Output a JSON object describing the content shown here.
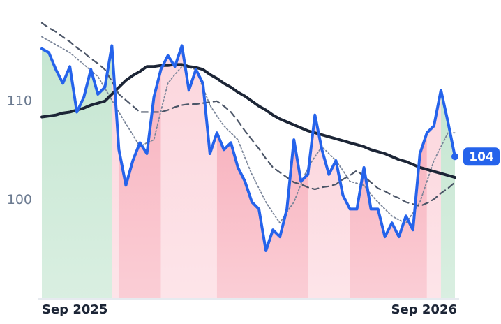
{
  "chart_data": {
    "type": "line",
    "categories": [
      "Sep 2025",
      null,
      null,
      null,
      null,
      null,
      null,
      null,
      null,
      null,
      null,
      null,
      null,
      null,
      null,
      null,
      null,
      null,
      null,
      null,
      null,
      null,
      null,
      null,
      null,
      null,
      null,
      null,
      null,
      null,
      null,
      null,
      null,
      null,
      null,
      null,
      null,
      null,
      null,
      null,
      null,
      null,
      null,
      null,
      null,
      null,
      null,
      null,
      null,
      null,
      null,
      null,
      null,
      null,
      null,
      null,
      null,
      null,
      null,
      "Sep 2026"
    ],
    "ylim": [
      90.1,
      118.1
    ],
    "yticks": [
      100,
      110
    ],
    "regions": [
      {
        "from": 0,
        "to": 10,
        "color": "#c5e6d1"
      },
      {
        "from": 10,
        "to": 11,
        "color": "#fcd6dd"
      },
      {
        "from": 11,
        "to": 17,
        "color": "#f8b3bf"
      },
      {
        "from": 17,
        "to": 25,
        "color": "#fcd6dd"
      },
      {
        "from": 25,
        "to": 38,
        "color": "#f8b3bf"
      },
      {
        "from": 38,
        "to": 44,
        "color": "#fcd6dd"
      },
      {
        "from": 44,
        "to": 55,
        "color": "#f8b3bf"
      },
      {
        "from": 55,
        "to": 57,
        "color": "#fcd6dd"
      },
      {
        "from": 57,
        "to": 59,
        "color": "#c5e6d1"
      }
    ],
    "series": [
      {
        "color": "#2563eb",
        "dash": "solid",
        "width": 4,
        "values": [
          115.3,
          114.9,
          113.2,
          111.8,
          113.5,
          108.9,
          110.4,
          113.2,
          110.7,
          111.4,
          115.6,
          105.1,
          101.5,
          104.0,
          105.8,
          104.7,
          110.4,
          113.2,
          114.6,
          113.5,
          115.6,
          111.1,
          113.2,
          111.8,
          104.7,
          106.8,
          105.1,
          105.8,
          103.3,
          101.9,
          99.8,
          99.1,
          94.9,
          97.0,
          96.3,
          99.1,
          106.1,
          101.9,
          102.6,
          108.6,
          105.1,
          102.6,
          104.0,
          100.5,
          99.1,
          99.1,
          103.3,
          99.1,
          99.1,
          96.3,
          97.7,
          96.3,
          98.4,
          97.0,
          104.7,
          106.8,
          107.5,
          111.1,
          107.9,
          104.4
        ],
        "value_labels": [
          null,
          null,
          null,
          null,
          null,
          null,
          null,
          null,
          null,
          null,
          null,
          null,
          null,
          null,
          null,
          null,
          null,
          null,
          null,
          null,
          null,
          null,
          null,
          null,
          null,
          null,
          null,
          null,
          null,
          null,
          null,
          null,
          null,
          null,
          null,
          null,
          null,
          null,
          null,
          null,
          null,
          null,
          null,
          null,
          null,
          null,
          null,
          null,
          null,
          null,
          null,
          null,
          null,
          null,
          null,
          null,
          null,
          null,
          null,
          "104"
        ]
      },
      {
        "color": "#1c2536",
        "dash": "solid",
        "width": 4,
        "values": [
          108.4,
          108.5,
          108.6,
          108.8,
          108.9,
          109.1,
          109.3,
          109.6,
          109.8,
          110.0,
          110.7,
          111.4,
          112.1,
          112.6,
          113.0,
          113.5,
          113.5,
          113.6,
          113.6,
          113.7,
          113.7,
          113.5,
          113.4,
          113.2,
          112.7,
          112.3,
          111.8,
          111.4,
          110.9,
          110.5,
          110.0,
          109.5,
          109.1,
          108.6,
          108.2,
          107.9,
          107.6,
          107.3,
          107.0,
          106.8,
          106.6,
          106.4,
          106.2,
          106.0,
          105.8,
          105.6,
          105.4,
          105.1,
          104.9,
          104.7,
          104.4,
          104.1,
          103.9,
          103.6,
          103.3,
          103.1,
          102.9,
          102.7,
          102.5,
          102.3
        ]
      },
      {
        "color": "#4b5567",
        "dash": "dashed",
        "width": 2.2,
        "values": [
          117.9,
          117.4,
          117.0,
          116.5,
          116.0,
          115.4,
          114.9,
          114.3,
          113.8,
          113.2,
          112.0,
          110.7,
          110.1,
          109.5,
          108.9,
          108.9,
          108.9,
          108.9,
          109.1,
          109.4,
          109.6,
          109.7,
          109.7,
          109.8,
          109.9,
          110.0,
          109.5,
          108.9,
          108.0,
          107.0,
          106.1,
          105.2,
          104.2,
          103.3,
          102.8,
          102.3,
          101.8,
          101.6,
          101.3,
          101.1,
          101.3,
          101.4,
          101.6,
          102.1,
          102.5,
          103.0,
          102.4,
          101.8,
          101.2,
          100.9,
          100.5,
          100.2,
          99.8,
          99.6,
          99.4,
          99.7,
          100.1,
          100.7,
          101.2,
          101.8
        ]
      },
      {
        "color": "#7a8599",
        "dash": "dotted",
        "width": 1.8,
        "values": [
          116.5,
          116.1,
          115.7,
          115.3,
          114.9,
          114.3,
          113.7,
          113.1,
          112.5,
          111.3,
          110.1,
          108.9,
          107.7,
          106.6,
          105.4,
          105.8,
          106.1,
          109.0,
          111.8,
          112.7,
          113.5,
          113.4,
          113.2,
          111.4,
          109.6,
          108.5,
          107.5,
          106.8,
          106.1,
          104.3,
          102.6,
          101.2,
          99.8,
          98.7,
          97.7,
          98.8,
          99.8,
          101.6,
          103.3,
          104.4,
          105.4,
          104.7,
          104.0,
          103.0,
          101.9,
          101.7,
          101.5,
          100.6,
          99.8,
          99.1,
          98.4,
          98.0,
          97.7,
          98.7,
          99.8,
          101.9,
          104.0,
          105.4,
          106.8,
          106.8
        ]
      }
    ]
  }
}
